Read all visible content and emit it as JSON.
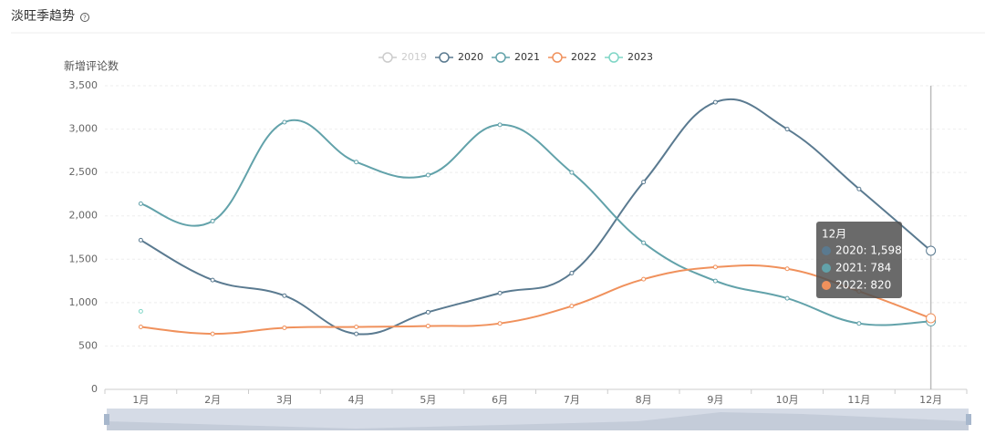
{
  "chart_data": {
    "type": "line",
    "title": "淡旺季趋势",
    "y_label": "新增评论数",
    "categories": [
      "1月",
      "2月",
      "3月",
      "4月",
      "5月",
      "6月",
      "7月",
      "8月",
      "9月",
      "10月",
      "11月",
      "12月"
    ],
    "series": [
      {
        "name": "2019",
        "color": "#cccccc",
        "visible": false,
        "values": [
          null,
          null,
          null,
          null,
          null,
          null,
          null,
          null,
          null,
          null,
          null,
          null
        ]
      },
      {
        "name": "2020",
        "color": "#5a7a90",
        "visible": true,
        "values": [
          1720,
          1260,
          1080,
          640,
          890,
          1110,
          1340,
          2390,
          3310,
          3000,
          2310,
          1598
        ]
      },
      {
        "name": "2021",
        "color": "#62a2aa",
        "visible": true,
        "values": [
          2140,
          1940,
          3080,
          2620,
          2470,
          3050,
          2500,
          1690,
          1250,
          1050,
          760,
          784
        ]
      },
      {
        "name": "2022",
        "color": "#f0915c",
        "visible": true,
        "values": [
          720,
          640,
          710,
          720,
          730,
          760,
          960,
          1270,
          1410,
          1390,
          1130,
          820
        ]
      },
      {
        "name": "2023",
        "color": "#7fd6c6",
        "visible": true,
        "values": [
          900,
          null,
          null,
          null,
          null,
          null,
          null,
          null,
          null,
          null,
          null,
          null
        ]
      }
    ],
    "ylim": [
      0,
      3500
    ],
    "yticks": [
      0,
      500,
      {
        "value": 1000,
        "label": "1,000"
      },
      {
        "value": 1500,
        "label": "1,500"
      },
      {
        "value": 2000,
        "label": "2,000"
      },
      {
        "value": 2500,
        "label": "2,500"
      },
      {
        "value": 3000,
        "label": "3,000"
      },
      {
        "value": 3500,
        "label": "3,500"
      }
    ],
    "grid": true,
    "tooltip": {
      "title": "12月",
      "category_index": 11,
      "lines": [
        "2020: 1,598",
        "2021: 784",
        "2022: 820"
      ]
    }
  }
}
